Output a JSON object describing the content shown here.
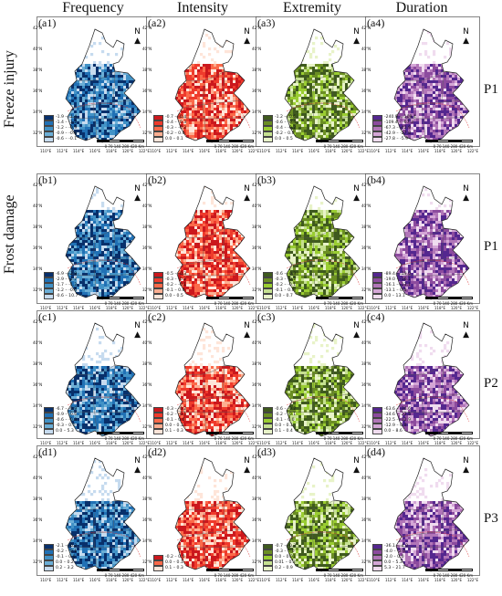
{
  "columns": [
    "Frequency",
    "Intensity",
    "Extremity",
    "Duration"
  ],
  "rows": [
    {
      "group": "Freeze injury",
      "period": "P1",
      "labels": [
        "(a1)",
        "(a2)",
        "(a3)",
        "(a4)"
      ]
    },
    {
      "group": "Frost damage",
      "period": "P1",
      "labels": [
        "(b1)",
        "(b2)",
        "(b3)",
        "(b4)"
      ]
    },
    {
      "group": "",
      "period": "P2",
      "labels": [
        "(c1)",
        "(c2)",
        "(c3)",
        "(c4)"
      ]
    },
    {
      "group": "",
      "period": "P3",
      "labels": [
        "(d1)",
        "(d2)",
        "(d3)",
        "(d4)"
      ]
    }
  ],
  "palettes": {
    "Frequency": [
      "#08306b",
      "#2171b5",
      "#4292c6",
      "#6baed6",
      "#c6dbef"
    ],
    "Intensity": [
      "#cb181d",
      "#ef3b2c",
      "#fb6a4a",
      "#fcae91",
      "#fee5d9"
    ],
    "Extremity": [
      "#3f5a1e",
      "#6b8e23",
      "#9acd32",
      "#c5e090",
      "#e8f3c8"
    ],
    "Duration": [
      "#54278f",
      "#8c4b9e",
      "#b176b8",
      "#d4a6d6",
      "#f0dcef"
    ]
  },
  "legends": {
    "a1": [
      "-1.9 – -1.4",
      "-1.4 – -1.2",
      "-1.2 – -0.9",
      "-0.9 – -0.6",
      "-0.6 – -0.1"
    ],
    "a2": [
      "-0.7 – -0.4",
      "-0.4 – -0.3",
      "-0.3 – -0.2",
      "-0.2 – 0.0",
      "0.0 – 0.1"
    ],
    "a3": [
      "-1.2 – -0.6",
      "-0.6 – -0.4",
      "-0.4 – -0.2",
      "-0.2 – 0.0",
      "0.0 – 0.5"
    ],
    "a4": [
      "-240.9 – -109.4",
      "-109.4 – -67.3",
      "-67.3 – -42.9",
      "-42.9 – -27.8",
      "-27.8 – -5.9"
    ],
    "b1": [
      "-6.9 – -2.9",
      "-2.9 – -1.7",
      "-1.7 – -1.2",
      "-1.2 – -0.6",
      "-0.6 – 10.7"
    ],
    "b2": [
      "-0.5 – -0.3",
      "-0.3 – -0.2",
      "-0.2 – -0.1",
      "-0.1 – 0.0",
      "0.0 – 0.5"
    ],
    "b3": [
      "-0.6 – -0.3",
      "-0.3 – -0.2",
      "-0.2 – -0.1",
      "-0.1 – 0.0",
      "0.0 – 0.7"
    ],
    "b4": [
      "-89.4 – -19.0",
      "-19.0 – -16.1",
      "-16.1 – -13.1",
      "-13.1 – 0.0",
      "0.0 – 13.1"
    ],
    "c1": [
      "-6.7 – -0.9",
      "-0.9 – -0.6",
      "-0.6 – -0.3",
      "-0.3 – 0.0",
      "0.0 – 5.3"
    ],
    "c2": [
      "-0.3 – -0.2",
      "-0.2 – -0.1",
      "-0.1 – 0.0",
      "0.0 – 0.1",
      "0.1 – 0.3"
    ],
    "c3": [
      "-0.6 – -0.2",
      "-0.2 – -0.1",
      "-0.1 – 0.0",
      "0.0 – 0.1",
      "0.1 – 0.4"
    ],
    "c4": [
      "-63.6 – -34.6",
      "-34.6 – -22.5",
      "-22.5 – -12.9",
      "-12.9 – 0.0",
      "0.0 – 8.6"
    ],
    "d1": [
      "-2.1 – -0.2",
      "-0.2 – -0.1",
      "-0.1 – 0.0",
      "0.0 – 0.2",
      "0.2 – 3.2"
    ],
    "d2": [
      "-0.2 – 0.0",
      "0.0 – 0.1",
      "0.1 – 0.3"
    ],
    "d3": [
      "-0.7 – -0.3",
      "-0.3 – 0.0",
      "0.0 – 0.01",
      "0.01 – 0.2",
      "0.2 – 0.9"
    ],
    "d4": [
      "-36.1 – -4.0",
      "-4.0 – -2.0",
      "-2.0 – 0.0",
      "0.0 – 5.3",
      "5.3 – 21.7"
    ]
  },
  "lon_ticks": [
    "110°E",
    "112°E",
    "114°E",
    "116°E",
    "118°E",
    "120°E",
    "122°E"
  ],
  "lat_ticks": [
    "42°N",
    "40°N",
    "38°N",
    "36°N",
    "34°N",
    "32°N"
  ],
  "scale_text": "0  70 140    280    420  Km",
  "north_symbol": "N"
}
